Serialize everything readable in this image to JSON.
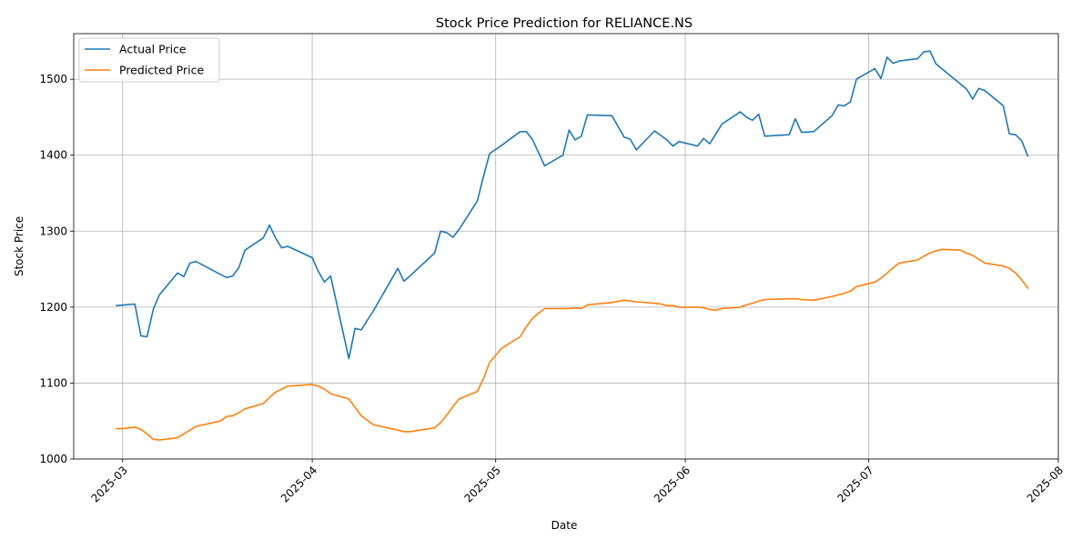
{
  "chart_data": {
    "type": "line",
    "title": "Stock Price Prediction for RELIANCE.NS",
    "xlabel": "Date",
    "ylabel": "Stock Price",
    "xlim": [
      "2025-02-21",
      "2025-08-01"
    ],
    "ylim": [
      1000,
      1560
    ],
    "x_ticks": [
      "2025-03",
      "2025-04",
      "2025-05",
      "2025-06",
      "2025-07",
      "2025-08"
    ],
    "y_ticks": [
      1000,
      1100,
      1200,
      1300,
      1400,
      1500
    ],
    "grid": true,
    "legend": "upper left",
    "series": [
      {
        "name": "Actual Price",
        "color": "#1f77b4",
        "points": [
          [
            "2025-02-28",
            1202
          ],
          [
            "2025-03-03",
            1204
          ],
          [
            "2025-03-04",
            1162
          ],
          [
            "2025-03-05",
            1161
          ],
          [
            "2025-03-06",
            1197
          ],
          [
            "2025-03-07",
            1216
          ],
          [
            "2025-03-10",
            1245
          ],
          [
            "2025-03-11",
            1240
          ],
          [
            "2025-03-12",
            1258
          ],
          [
            "2025-03-13",
            1260
          ],
          [
            "2025-03-17",
            1243
          ],
          [
            "2025-03-18",
            1239
          ],
          [
            "2025-03-19",
            1241
          ],
          [
            "2025-03-20",
            1252
          ],
          [
            "2025-03-21",
            1275
          ],
          [
            "2025-03-24",
            1291
          ],
          [
            "2025-03-25",
            1308
          ],
          [
            "2025-03-26",
            1291
          ],
          [
            "2025-03-27",
            1278
          ],
          [
            "2025-03-28",
            1280
          ],
          [
            "2025-04-01",
            1265
          ],
          [
            "2025-04-02",
            1247
          ],
          [
            "2025-04-03",
            1233
          ],
          [
            "2025-04-04",
            1241
          ],
          [
            "2025-04-07",
            1132
          ],
          [
            "2025-04-08",
            1172
          ],
          [
            "2025-04-09",
            1170
          ],
          [
            "2025-04-11",
            1195
          ],
          [
            "2025-04-15",
            1251
          ],
          [
            "2025-04-16",
            1234
          ],
          [
            "2025-04-17",
            1241
          ],
          [
            "2025-04-21",
            1271
          ],
          [
            "2025-04-22",
            1300
          ],
          [
            "2025-04-23",
            1298
          ],
          [
            "2025-04-24",
            1292
          ],
          [
            "2025-04-25",
            1302
          ],
          [
            "2025-04-28",
            1340
          ],
          [
            "2025-04-29",
            1372
          ],
          [
            "2025-04-30",
            1402
          ],
          [
            "2025-05-02",
            1413
          ],
          [
            "2025-05-05",
            1431
          ],
          [
            "2025-05-06",
            1431
          ],
          [
            "2025-05-07",
            1421
          ],
          [
            "2025-05-09",
            1386
          ],
          [
            "2025-05-12",
            1400
          ],
          [
            "2025-05-13",
            1433
          ],
          [
            "2025-05-14",
            1420
          ],
          [
            "2025-05-15",
            1425
          ],
          [
            "2025-05-16",
            1453
          ],
          [
            "2025-05-20",
            1452
          ],
          [
            "2025-05-22",
            1424
          ],
          [
            "2025-05-23",
            1421
          ],
          [
            "2025-05-24",
            1407
          ],
          [
            "2025-05-27",
            1432
          ],
          [
            "2025-05-29",
            1420
          ],
          [
            "2025-05-30",
            1412
          ],
          [
            "2025-05-31",
            1418
          ],
          [
            "2025-06-03",
            1412
          ],
          [
            "2025-06-04",
            1422
          ],
          [
            "2025-06-05",
            1415
          ],
          [
            "2025-06-07",
            1441
          ],
          [
            "2025-06-10",
            1457
          ],
          [
            "2025-06-11",
            1450
          ],
          [
            "2025-06-12",
            1446
          ],
          [
            "2025-06-13",
            1454
          ],
          [
            "2025-06-14",
            1425
          ],
          [
            "2025-06-18",
            1427
          ],
          [
            "2025-06-19",
            1448
          ],
          [
            "2025-06-20",
            1430
          ],
          [
            "2025-06-22",
            1431
          ],
          [
            "2025-06-25",
            1452
          ],
          [
            "2025-06-26",
            1466
          ],
          [
            "2025-06-27",
            1465
          ],
          [
            "2025-06-28",
            1470
          ],
          [
            "2025-06-29",
            1500
          ],
          [
            "2025-07-02",
            1514
          ],
          [
            "2025-07-03",
            1501
          ],
          [
            "2025-07-04",
            1529
          ],
          [
            "2025-07-05",
            1521
          ],
          [
            "2025-07-06",
            1524
          ],
          [
            "2025-07-09",
            1527
          ],
          [
            "2025-07-10",
            1536
          ],
          [
            "2025-07-11",
            1537
          ],
          [
            "2025-07-12",
            1520
          ],
          [
            "2025-07-17",
            1487
          ],
          [
            "2025-07-18",
            1474
          ],
          [
            "2025-07-19",
            1488
          ],
          [
            "2025-07-20",
            1485
          ],
          [
            "2025-07-23",
            1465
          ],
          [
            "2025-07-24",
            1428
          ],
          [
            "2025-07-25",
            1427
          ],
          [
            "2025-07-26",
            1419
          ],
          [
            "2025-07-27",
            1399
          ]
        ]
      },
      {
        "name": "Predicted Price",
        "color": "#ff7f0e",
        "points": [
          [
            "2025-02-28",
            1040
          ],
          [
            "2025-03-01",
            1040
          ],
          [
            "2025-03-03",
            1042
          ],
          [
            "2025-03-04",
            1039
          ],
          [
            "2025-03-05",
            1033
          ],
          [
            "2025-03-06",
            1026
          ],
          [
            "2025-03-07",
            1025
          ],
          [
            "2025-03-10",
            1028
          ],
          [
            "2025-03-11",
            1033
          ],
          [
            "2025-03-12",
            1038
          ],
          [
            "2025-03-13",
            1043
          ],
          [
            "2025-03-17",
            1050
          ],
          [
            "2025-03-18",
            1056
          ],
          [
            "2025-03-19",
            1057
          ],
          [
            "2025-03-20",
            1061
          ],
          [
            "2025-03-21",
            1066
          ],
          [
            "2025-03-24",
            1073
          ],
          [
            "2025-03-25",
            1081
          ],
          [
            "2025-03-26",
            1088
          ],
          [
            "2025-03-27",
            1092
          ],
          [
            "2025-03-28",
            1096
          ],
          [
            "2025-04-01",
            1098
          ],
          [
            "2025-04-02",
            1096
          ],
          [
            "2025-04-03",
            1092
          ],
          [
            "2025-04-04",
            1086
          ],
          [
            "2025-04-07",
            1079
          ],
          [
            "2025-04-08",
            1068
          ],
          [
            "2025-04-09",
            1057
          ],
          [
            "2025-04-11",
            1045
          ],
          [
            "2025-04-15",
            1038
          ],
          [
            "2025-04-16",
            1036
          ],
          [
            "2025-04-17",
            1036
          ],
          [
            "2025-04-21",
            1041
          ],
          [
            "2025-04-22",
            1048
          ],
          [
            "2025-04-23",
            1058
          ],
          [
            "2025-04-24",
            1069
          ],
          [
            "2025-04-25",
            1079
          ],
          [
            "2025-04-28",
            1089
          ],
          [
            "2025-04-29",
            1106
          ],
          [
            "2025-04-30",
            1127
          ],
          [
            "2025-05-02",
            1146
          ],
          [
            "2025-05-05",
            1161
          ],
          [
            "2025-05-06",
            1174
          ],
          [
            "2025-05-07",
            1185
          ],
          [
            "2025-05-08",
            1192
          ],
          [
            "2025-05-09",
            1198
          ],
          [
            "2025-05-12",
            1198
          ],
          [
            "2025-05-13",
            1198
          ],
          [
            "2025-05-14",
            1199
          ],
          [
            "2025-05-15",
            1198
          ],
          [
            "2025-05-16",
            1203
          ],
          [
            "2025-05-20",
            1206
          ],
          [
            "2025-05-22",
            1209
          ],
          [
            "2025-05-23",
            1208
          ],
          [
            "2025-05-24",
            1207
          ],
          [
            "2025-05-27",
            1205
          ],
          [
            "2025-05-28",
            1204
          ],
          [
            "2025-05-29",
            1202
          ],
          [
            "2025-05-30",
            1202
          ],
          [
            "2025-05-31",
            1200
          ],
          [
            "2025-06-03",
            1200
          ],
          [
            "2025-06-04",
            1199
          ],
          [
            "2025-06-05",
            1197
          ],
          [
            "2025-06-06",
            1196
          ],
          [
            "2025-06-07",
            1198
          ],
          [
            "2025-06-10",
            1200
          ],
          [
            "2025-06-11",
            1203
          ],
          [
            "2025-06-12",
            1205
          ],
          [
            "2025-06-13",
            1208
          ],
          [
            "2025-06-14",
            1210
          ],
          [
            "2025-06-18",
            1211
          ],
          [
            "2025-06-19",
            1211
          ],
          [
            "2025-06-20",
            1210
          ],
          [
            "2025-06-22",
            1209
          ],
          [
            "2025-06-25",
            1214
          ],
          [
            "2025-06-26",
            1216
          ],
          [
            "2025-06-27",
            1218
          ],
          [
            "2025-06-28",
            1221
          ],
          [
            "2025-06-29",
            1227
          ],
          [
            "2025-07-02",
            1233
          ],
          [
            "2025-07-03",
            1238
          ],
          [
            "2025-07-04",
            1245
          ],
          [
            "2025-07-05",
            1252
          ],
          [
            "2025-07-06",
            1258
          ],
          [
            "2025-07-09",
            1262
          ],
          [
            "2025-07-10",
            1267
          ],
          [
            "2025-07-11",
            1271
          ],
          [
            "2025-07-12",
            1274
          ],
          [
            "2025-07-13",
            1276
          ],
          [
            "2025-07-16",
            1275
          ],
          [
            "2025-07-17",
            1271
          ],
          [
            "2025-07-18",
            1268
          ],
          [
            "2025-07-19",
            1263
          ],
          [
            "2025-07-20",
            1258
          ],
          [
            "2025-07-23",
            1254
          ],
          [
            "2025-07-24",
            1251
          ],
          [
            "2025-07-25",
            1245
          ],
          [
            "2025-07-26",
            1236
          ],
          [
            "2025-07-27",
            1225
          ]
        ]
      }
    ]
  }
}
